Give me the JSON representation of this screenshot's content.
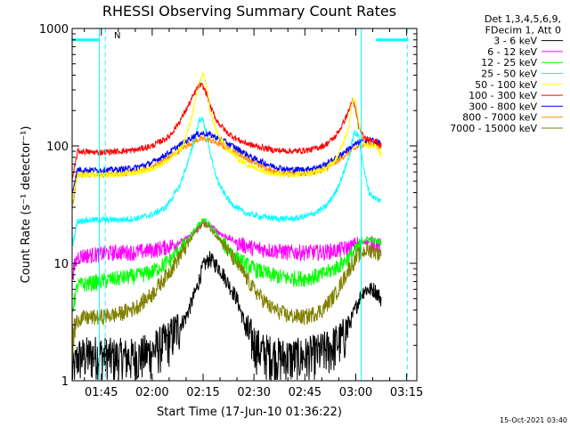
{
  "chart_data": {
    "type": "line",
    "title": "RHESSI Observing Summary Count Rates",
    "xlabel": "Start Time (17-Jun-10 01:36:22)",
    "ylabel": "Count Rate (s⁻¹ detector⁻¹)",
    "yscale": "log",
    "ylim": [
      1,
      1000
    ],
    "xlim_minutes": [
      96.4,
      198.0
    ],
    "x_ticks": [
      {
        "label": "01:45",
        "minute": 105
      },
      {
        "label": "02:00",
        "minute": 120
      },
      {
        "label": "02:15",
        "minute": 135
      },
      {
        "label": "02:30",
        "minute": 150
      },
      {
        "label": "02:45",
        "minute": 165
      },
      {
        "label": "03:00",
        "minute": 180
      },
      {
        "label": "03:15",
        "minute": 195
      }
    ],
    "y_ticks": [
      {
        "label": "1",
        "value": 1
      },
      {
        "label": "10",
        "value": 10
      },
      {
        "label": "100",
        "value": 100
      },
      {
        "label": "1000",
        "value": 1000
      }
    ],
    "legend": {
      "header": [
        "Det 1,3,4,5,6,9,",
        "FDecim 1, Att 0"
      ],
      "placement": "top-right-outside"
    },
    "series": [
      {
        "name": "3 - 6 keV",
        "color": "#000000",
        "x": [
          96.4,
          98,
          104,
          108,
          115,
          120,
          125,
          130,
          133,
          135,
          137,
          140,
          145,
          148,
          152,
          158,
          163,
          168,
          172,
          176,
          179,
          181,
          182.5,
          184,
          185.5,
          187.5
        ],
        "y": [
          1.1,
          1.6,
          1.7,
          1.6,
          1.6,
          1.8,
          2.3,
          3.5,
          6,
          9.5,
          11,
          9,
          5,
          2.6,
          1.8,
          1.6,
          1.6,
          1.7,
          1.9,
          2.3,
          3.5,
          5,
          6,
          6,
          6,
          5
        ]
      },
      {
        "name": "6 - 12 keV",
        "color": "#ff00ff",
        "x": [
          96.4,
          98,
          104,
          110,
          115,
          120,
          125,
          130,
          133,
          135,
          137,
          140,
          145,
          150,
          155,
          160,
          165,
          170,
          175,
          179,
          181,
          182.5,
          184,
          186,
          187.5
        ],
        "y": [
          8,
          11.5,
          12,
          12.5,
          12.5,
          13,
          14,
          16,
          19,
          22,
          21,
          18,
          15,
          13.5,
          13,
          12.5,
          12.5,
          12.5,
          13,
          14,
          15,
          15.5,
          15,
          14.5,
          14
        ]
      },
      {
        "name": "12 - 25 keV",
        "color": "#00ff00",
        "x": [
          96.4,
          98,
          104,
          110,
          115,
          120,
          125,
          130,
          133,
          135,
          137,
          140,
          145,
          150,
          155,
          160,
          165,
          170,
          173,
          176,
          179,
          181,
          182.5,
          184,
          186,
          187.5
        ],
        "y": [
          4,
          6.5,
          7,
          7.5,
          7.8,
          8.5,
          10.5,
          15,
          20,
          24,
          21,
          16,
          11,
          9,
          8,
          7.5,
          7.5,
          8,
          8.8,
          10,
          12,
          14,
          16,
          16,
          15.5,
          15
        ]
      },
      {
        "name": "25 - 50 keV",
        "color": "#00ffff",
        "x": [
          96.4,
          98,
          104,
          110,
          115,
          120,
          124,
          128,
          131,
          133,
          134,
          135,
          136,
          137,
          138,
          140,
          143,
          147,
          152,
          157,
          162,
          167,
          171,
          174,
          176,
          178,
          179.5,
          181,
          182.5,
          184,
          185.5,
          187.5
        ],
        "y": [
          14,
          23,
          23.5,
          23.5,
          24,
          26,
          30,
          45,
          80,
          130,
          170,
          165,
          130,
          90,
          65,
          45,
          33,
          27,
          25,
          24,
          24,
          26,
          30,
          40,
          55,
          80,
          130,
          120,
          60,
          40,
          36,
          34
        ]
      },
      {
        "name": "50 - 100 keV",
        "color": "#ffff00",
        "x": [
          96.4,
          98,
          104,
          110,
          115,
          120,
          125,
          129,
          131,
          133,
          134,
          135,
          136,
          137,
          139,
          142,
          146,
          150,
          156,
          162,
          167,
          171,
          174,
          176,
          178,
          179,
          180,
          181,
          182.5,
          184,
          186,
          187.5
        ],
        "y": [
          35,
          57,
          56,
          57,
          59,
          64,
          76,
          100,
          150,
          260,
          360,
          410,
          330,
          200,
          130,
          95,
          75,
          65,
          58,
          57,
          59,
          64,
          75,
          100,
          150,
          250,
          230,
          150,
          105,
          100,
          100,
          85
        ]
      },
      {
        "name": "100 - 300 keV",
        "color": "#ff0000",
        "x": [
          96.4,
          98,
          104,
          110,
          115,
          120,
          125,
          128,
          131,
          133,
          134,
          135,
          136,
          137,
          139,
          142,
          146,
          150,
          156,
          162,
          167,
          171,
          174,
          176,
          178,
          179,
          180,
          181,
          182.5,
          184,
          186,
          187.5
        ],
        "y": [
          50,
          90,
          88,
          90,
          92,
          100,
          120,
          160,
          230,
          300,
          330,
          320,
          280,
          220,
          165,
          130,
          110,
          100,
          92,
          90,
          93,
          102,
          120,
          150,
          200,
          250,
          200,
          140,
          115,
          115,
          110,
          100
        ]
      },
      {
        "name": "300 - 800 keV",
        "color": "#0000ff",
        "x": [
          96.4,
          98,
          104,
          110,
          115,
          120,
          125,
          130,
          133,
          135,
          137,
          140,
          145,
          150,
          155,
          160,
          165,
          170,
          174,
          178,
          181,
          183,
          185,
          187.5
        ],
        "y": [
          40,
          63,
          62,
          63,
          65,
          72,
          88,
          110,
          125,
          128,
          125,
          115,
          95,
          78,
          68,
          63,
          63,
          67,
          78,
          95,
          108,
          112,
          112,
          105
        ]
      },
      {
        "name": "800 - 7000 keV",
        "color": "#ff8c00",
        "x": [
          96.4,
          98,
          104,
          110,
          115,
          120,
          125,
          130,
          133,
          135,
          137,
          140,
          145,
          150,
          155,
          160,
          165,
          170,
          174,
          178,
          181,
          183,
          185,
          187.5
        ],
        "y": [
          30,
          58,
          57,
          58,
          60,
          66,
          80,
          100,
          112,
          115,
          112,
          103,
          87,
          72,
          62,
          58,
          58,
          62,
          72,
          88,
          100,
          104,
          104,
          98
        ]
      },
      {
        "name": "7000 - 15000 keV",
        "color": "#808000",
        "x": [
          96.4,
          98,
          104,
          110,
          115,
          120,
          125,
          130,
          133,
          135,
          137,
          140,
          145,
          150,
          155,
          160,
          165,
          170,
          174,
          178,
          181,
          183,
          185,
          187.5
        ],
        "y": [
          2.2,
          3.4,
          3.5,
          3.7,
          4.2,
          5.5,
          8.5,
          14,
          19,
          22,
          20,
          16,
          10,
          6,
          4.2,
          3.6,
          3.5,
          4,
          5.5,
          9,
          12,
          13,
          13,
          12
        ]
      }
    ],
    "annotations": [
      {
        "text": "N",
        "color": "#00ffff"
      },
      {
        "text": "15-Oct-2021 03:40",
        "color": "#000000"
      }
    ],
    "markers": {
      "night_bars": [
        {
          "from_minute": 96.4,
          "to_minute": 104.5,
          "value": 800
        },
        {
          "from_minute": 186.0,
          "to_minute": 195.5,
          "value": 800
        }
      ],
      "solid_verticals_minute": [
        104.4,
        181.6
      ],
      "dashed_verticals_minute": [
        106.2,
        195.2
      ]
    }
  }
}
